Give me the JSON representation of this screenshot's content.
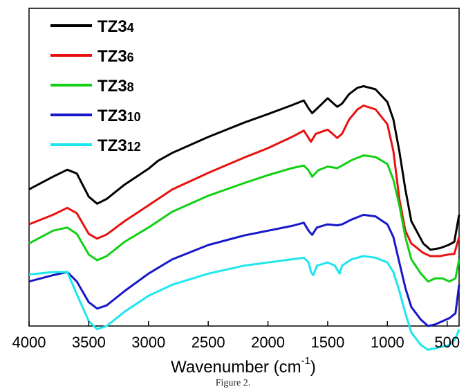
{
  "chart_data": {
    "type": "line",
    "xlabel_main": "Wavenumber (cm",
    "xlabel_sup": "-1",
    "xlabel_close": ")",
    "x_reversed": true,
    "xlim": [
      4000,
      400
    ],
    "x_ticks": [
      4000,
      3500,
      3000,
      2500,
      2000,
      1500,
      1000,
      500
    ],
    "y_ticks_shown": false,
    "legend_position": "top-left",
    "series": [
      {
        "name": "TZ34",
        "name_main": "TZ3",
        "name_sub": "4",
        "color": "#000000",
        "points": [
          [
            4000,
            0.57
          ],
          [
            3800,
            0.53
          ],
          [
            3680,
            0.508
          ],
          [
            3600,
            0.52
          ],
          [
            3500,
            0.593
          ],
          [
            3430,
            0.615
          ],
          [
            3350,
            0.6
          ],
          [
            3200,
            0.555
          ],
          [
            3000,
            0.505
          ],
          [
            2920,
            0.48
          ],
          [
            2800,
            0.455
          ],
          [
            2500,
            0.405
          ],
          [
            2200,
            0.36
          ],
          [
            2000,
            0.333
          ],
          [
            1800,
            0.305
          ],
          [
            1700,
            0.29
          ],
          [
            1660,
            0.315
          ],
          [
            1630,
            0.33
          ],
          [
            1560,
            0.305
          ],
          [
            1500,
            0.283
          ],
          [
            1450,
            0.3
          ],
          [
            1420,
            0.31
          ],
          [
            1380,
            0.3
          ],
          [
            1320,
            0.27
          ],
          [
            1250,
            0.25
          ],
          [
            1200,
            0.245
          ],
          [
            1100,
            0.255
          ],
          [
            1000,
            0.295
          ],
          [
            950,
            0.35
          ],
          [
            900,
            0.45
          ],
          [
            850,
            0.57
          ],
          [
            800,
            0.67
          ],
          [
            700,
            0.74
          ],
          [
            640,
            0.76
          ],
          [
            560,
            0.755
          ],
          [
            490,
            0.745
          ],
          [
            440,
            0.735
          ],
          [
            400,
            0.65
          ]
        ]
      },
      {
        "name": "TZ36",
        "name_main": "TZ3",
        "name_sub": "6",
        "color": "#e8110f",
        "points": [
          [
            4000,
            0.68
          ],
          [
            3800,
            0.65
          ],
          [
            3680,
            0.628
          ],
          [
            3600,
            0.645
          ],
          [
            3500,
            0.71
          ],
          [
            3430,
            0.725
          ],
          [
            3350,
            0.712
          ],
          [
            3200,
            0.67
          ],
          [
            3000,
            0.62
          ],
          [
            2800,
            0.57
          ],
          [
            2500,
            0.518
          ],
          [
            2200,
            0.47
          ],
          [
            2000,
            0.44
          ],
          [
            1800,
            0.405
          ],
          [
            1700,
            0.385
          ],
          [
            1640,
            0.42
          ],
          [
            1600,
            0.395
          ],
          [
            1500,
            0.382
          ],
          [
            1420,
            0.408
          ],
          [
            1380,
            0.395
          ],
          [
            1320,
            0.35
          ],
          [
            1250,
            0.318
          ],
          [
            1200,
            0.306
          ],
          [
            1100,
            0.318
          ],
          [
            1000,
            0.365
          ],
          [
            950,
            0.45
          ],
          [
            900,
            0.6
          ],
          [
            850,
            0.7
          ],
          [
            800,
            0.74
          ],
          [
            700,
            0.77
          ],
          [
            640,
            0.78
          ],
          [
            560,
            0.78
          ],
          [
            490,
            0.775
          ],
          [
            440,
            0.773
          ],
          [
            400,
            0.72
          ]
        ]
      },
      {
        "name": "TZ38",
        "name_main": "TZ3",
        "name_sub": "8",
        "color": "#10d012",
        "points": [
          [
            4000,
            0.74
          ],
          [
            3800,
            0.7
          ],
          [
            3680,
            0.69
          ],
          [
            3600,
            0.71
          ],
          [
            3500,
            0.775
          ],
          [
            3430,
            0.793
          ],
          [
            3350,
            0.78
          ],
          [
            3200,
            0.735
          ],
          [
            3000,
            0.69
          ],
          [
            2800,
            0.64
          ],
          [
            2500,
            0.59
          ],
          [
            2200,
            0.55
          ],
          [
            2000,
            0.525
          ],
          [
            1800,
            0.503
          ],
          [
            1700,
            0.495
          ],
          [
            1660,
            0.51
          ],
          [
            1630,
            0.53
          ],
          [
            1580,
            0.51
          ],
          [
            1500,
            0.498
          ],
          [
            1420,
            0.503
          ],
          [
            1380,
            0.495
          ],
          [
            1300,
            0.478
          ],
          [
            1200,
            0.463
          ],
          [
            1100,
            0.468
          ],
          [
            1000,
            0.49
          ],
          [
            950,
            0.54
          ],
          [
            900,
            0.62
          ],
          [
            850,
            0.72
          ],
          [
            800,
            0.79
          ],
          [
            720,
            0.835
          ],
          [
            660,
            0.86
          ],
          [
            600,
            0.85
          ],
          [
            540,
            0.85
          ],
          [
            480,
            0.86
          ],
          [
            430,
            0.85
          ],
          [
            400,
            0.79
          ]
        ]
      },
      {
        "name": "TZ310",
        "name_main": "TZ3",
        "name_sub": "10",
        "color": "#1717c9",
        "points": [
          [
            4000,
            0.86
          ],
          [
            3800,
            0.84
          ],
          [
            3680,
            0.83
          ],
          [
            3600,
            0.86
          ],
          [
            3500,
            0.925
          ],
          [
            3430,
            0.945
          ],
          [
            3350,
            0.935
          ],
          [
            3200,
            0.89
          ],
          [
            3000,
            0.835
          ],
          [
            2800,
            0.79
          ],
          [
            2500,
            0.745
          ],
          [
            2200,
            0.715
          ],
          [
            2000,
            0.7
          ],
          [
            1800,
            0.685
          ],
          [
            1700,
            0.675
          ],
          [
            1660,
            0.7
          ],
          [
            1630,
            0.713
          ],
          [
            1590,
            0.69
          ],
          [
            1500,
            0.68
          ],
          [
            1420,
            0.683
          ],
          [
            1380,
            0.68
          ],
          [
            1300,
            0.665
          ],
          [
            1200,
            0.65
          ],
          [
            1100,
            0.655
          ],
          [
            1000,
            0.68
          ],
          [
            950,
            0.72
          ],
          [
            900,
            0.8
          ],
          [
            850,
            0.88
          ],
          [
            800,
            0.94
          ],
          [
            720,
            0.98
          ],
          [
            660,
            1.0
          ],
          [
            600,
            0.995
          ],
          [
            540,
            0.985
          ],
          [
            480,
            0.975
          ],
          [
            430,
            0.96
          ],
          [
            400,
            0.87
          ]
        ]
      },
      {
        "name": "TZ312",
        "name_main": "TZ3",
        "name_sub": "12",
        "color": "#1ee6ee",
        "points": [
          [
            4000,
            0.838
          ],
          [
            3800,
            0.83
          ],
          [
            3680,
            0.83
          ],
          [
            3600,
            0.9
          ],
          [
            3500,
            0.985
          ],
          [
            3430,
            1.01
          ],
          [
            3350,
            1.0
          ],
          [
            3200,
            0.955
          ],
          [
            3000,
            0.905
          ],
          [
            2800,
            0.87
          ],
          [
            2500,
            0.835
          ],
          [
            2200,
            0.81
          ],
          [
            2000,
            0.8
          ],
          [
            1800,
            0.79
          ],
          [
            1700,
            0.785
          ],
          [
            1660,
            0.8
          ],
          [
            1640,
            0.83
          ],
          [
            1620,
            0.84
          ],
          [
            1590,
            0.81
          ],
          [
            1500,
            0.8
          ],
          [
            1440,
            0.81
          ],
          [
            1400,
            0.835
          ],
          [
            1380,
            0.81
          ],
          [
            1300,
            0.79
          ],
          [
            1200,
            0.78
          ],
          [
            1100,
            0.785
          ],
          [
            1000,
            0.8
          ],
          [
            950,
            0.83
          ],
          [
            900,
            0.89
          ],
          [
            850,
            0.96
          ],
          [
            800,
            1.02
          ],
          [
            720,
            1.06
          ],
          [
            660,
            1.075
          ],
          [
            600,
            1.07
          ],
          [
            540,
            1.065
          ],
          [
            480,
            1.06
          ],
          [
            430,
            1.04
          ],
          [
            400,
            1.01
          ]
        ]
      }
    ]
  },
  "caption": "Figure 2."
}
